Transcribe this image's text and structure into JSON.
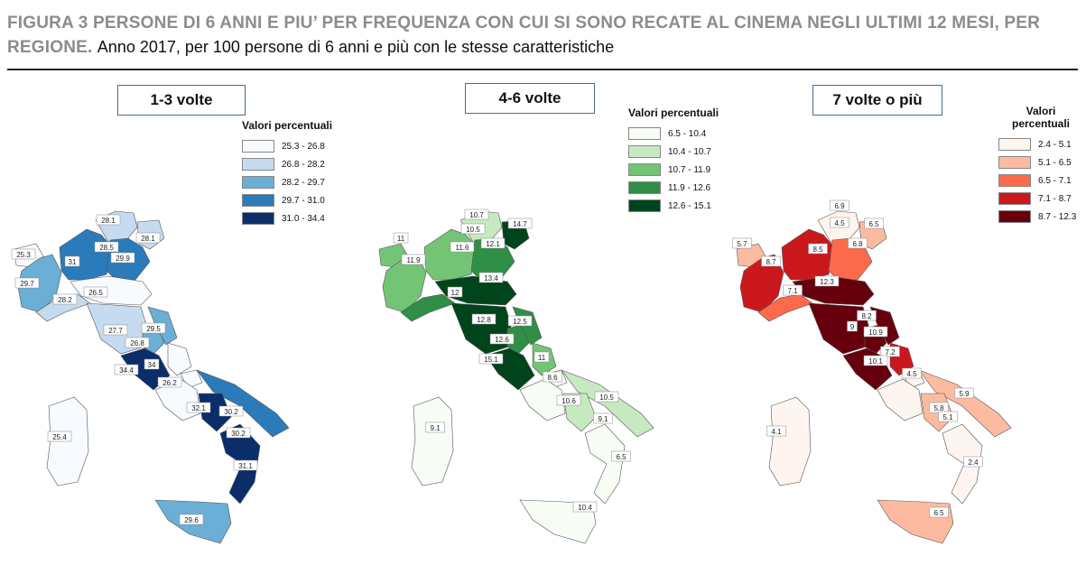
{
  "title": {
    "bold": "FIGURA 3 PERSONE DI 6 ANNI E PIU’ PER FREQUENZA CON CUI SI SONO RECATE AL CINEMA NEGLI ULTIMI 12 MESI, PER REGIONE.",
    "subtitle": "Anno 2017, per 100 persone di 6 anni e più con le stesse caratteristiche"
  },
  "legend_title": "Valori percentuali",
  "maps": [
    {
      "title": "1-3 volte",
      "legend": [
        {
          "range": "25.3 - 26.8",
          "color": "#f7fbff"
        },
        {
          "range": "26.8 - 28.2",
          "color": "#c6dbef"
        },
        {
          "range": "28.2 - 29.7",
          "color": "#6baed6"
        },
        {
          "range": "29.7 - 31.0",
          "color": "#2b7bba"
        },
        {
          "range": "31.0 - 34.4",
          "color": "#0b2e6b"
        }
      ],
      "labels": [
        "25.3",
        "29.7",
        "31",
        "28.1",
        "28.5",
        "29.9",
        "28.1",
        "28.2",
        "26.5",
        "27.7",
        "29.5",
        "26.8",
        "34.4",
        "34",
        "26.2",
        "32.1",
        "30.2",
        "30.2",
        "31.1",
        "25.4",
        "29.6"
      ]
    },
    {
      "title": "4-6 volte",
      "legend": [
        {
          "range": "6.5 - 10.4",
          "color": "#f7fcf5"
        },
        {
          "range": "10.4 - 10.7",
          "color": "#c7e9c0"
        },
        {
          "range": "10.7 - 11.9",
          "color": "#74c476"
        },
        {
          "range": "11.9 - 12.6",
          "color": "#2f8f47"
        },
        {
          "range": "12.6 - 15.1",
          "color": "#00441b"
        }
      ],
      "labels": [
        "11",
        "11.9",
        "11.6",
        "10.7",
        "10.5",
        "12.1",
        "14.7",
        "12",
        "13.4",
        "12.8",
        "12.6",
        "12.5",
        "15.1",
        "11",
        "8.6",
        "10.6",
        "10.5",
        "9.1",
        "9.1",
        "6.5",
        "10.4"
      ]
    },
    {
      "title": "7 volte o più",
      "legend": [
        {
          "range": "2.4 - 5.1",
          "color": "#fff5f0"
        },
        {
          "range": "5.1 - 6.5",
          "color": "#fcbba1"
        },
        {
          "range": "6.5 - 7.1",
          "color": "#fb6a4a"
        },
        {
          "range": "7.1 - 8.7",
          "color": "#cb181d"
        },
        {
          "range": "8.7 - 12.3",
          "color": "#67000d"
        }
      ],
      "labels": [
        "5.7",
        "8.7",
        "8.5",
        "4.5",
        "6.9",
        "6.8",
        "6.5",
        "7.1",
        "12.3",
        "8.2",
        "9",
        "10.9",
        "7.2",
        "10.1",
        "4.5",
        "5.9",
        "5.8",
        "5.1",
        "4.1",
        "2.4",
        "6.5"
      ]
    }
  ]
}
